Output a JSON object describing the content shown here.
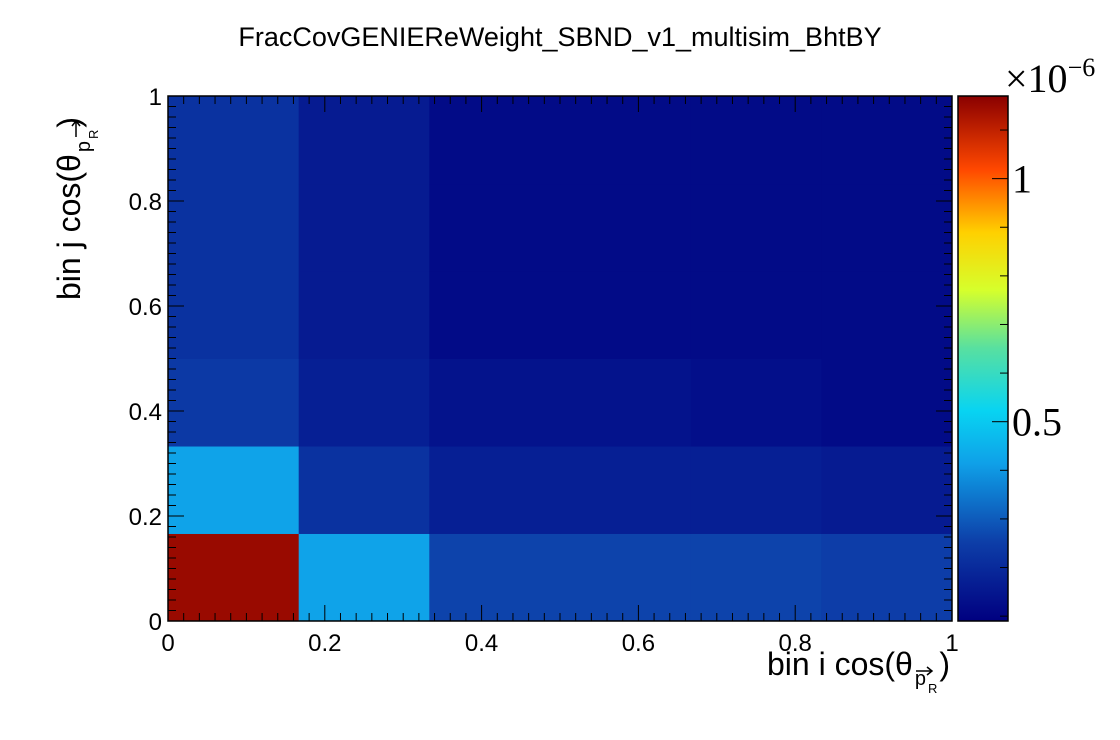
{
  "chart_data": {
    "type": "heatmap",
    "title": "FracCovGENIEReWeight_SBND_v1_multisim_BhtBY",
    "xlabel": "bin i cos(θ",
    "xlabel_sub_vec": "p",
    "xlabel_sub_R": "R",
    "xlabel_close": ")",
    "ylabel": "bin j cos(θ",
    "ylabel_sub_vec": "p",
    "ylabel_sub_R": "R",
    "ylabel_close": ")",
    "xlim": [
      0,
      1
    ],
    "ylim": [
      0,
      1
    ],
    "x_ticks": [
      "0",
      "0.2",
      "0.4",
      "0.6",
      "0.8",
      "1"
    ],
    "y_ticks": [
      "0",
      "0.2",
      "0.4",
      "0.6",
      "0.8",
      "1"
    ],
    "x_bin_edges": [
      0,
      0.1667,
      0.3333,
      0.5,
      0.6667,
      0.8333,
      1
    ],
    "y_bin_edges": [
      0,
      0.1667,
      0.3333,
      0.5,
      0.6667,
      0.8333,
      1
    ],
    "values": [
      [
        1.15e-06,
        4.2e-07,
        2.6e-07,
        2.6e-07,
        2.6e-07,
        2.5e-07
      ],
      [
        4.2e-07,
        2.2e-07,
        1.7e-07,
        1.7e-07,
        1.7e-07,
        1.6e-07
      ],
      [
        2.4e-07,
        1.7e-07,
        1.4e-07,
        1.4e-07,
        1.3e-07,
        1.2e-07
      ],
      [
        2.2e-07,
        1.6e-07,
        1.2e-07,
        1.2e-07,
        1.2e-07,
        1.2e-07
      ],
      [
        2.2e-07,
        1.6e-07,
        1.2e-07,
        1.2e-07,
        1.2e-07,
        1.2e-07
      ],
      [
        2.2e-07,
        1.6e-07,
        1.2e-07,
        1.2e-07,
        1.2e-07,
        1.2e-07
      ]
    ],
    "values_note_axes": "rows = y bins bottom to top, columns = x bins left to right",
    "zlim": [
      9e-08,
      1.17e-06
    ],
    "colorbar": {
      "exponent_base": "×10",
      "exponent": "−6",
      "ticks": [
        {
          "value": 5e-07,
          "label": "0.5"
        },
        {
          "value": 1e-06,
          "label": "1"
        }
      ]
    },
    "palette": "kBird-like jet",
    "grid": false,
    "legend": "none"
  }
}
